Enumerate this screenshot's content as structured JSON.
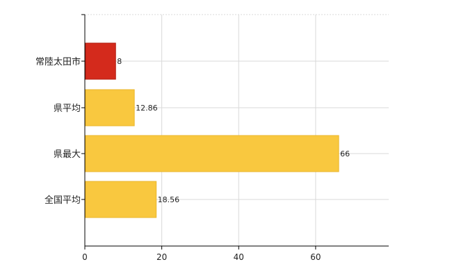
{
  "chart_data": {
    "type": "bar",
    "orientation": "horizontal",
    "title": "",
    "xlabel": "",
    "ylabel": "",
    "categories": [
      "常陸太田市",
      "県平均",
      "県最大",
      "全国平均"
    ],
    "values": [
      8,
      12.86,
      66,
      18.56
    ],
    "data_labels": [
      "8",
      "12.86",
      "66",
      "18.56"
    ],
    "xlim": [
      0,
      79
    ],
    "xticks": [
      0,
      20,
      40,
      60
    ],
    "grid": true,
    "legend": "none",
    "colors": {
      "highlight": "#d42a1c",
      "highlight_stroke": "#b01e12",
      "default": "#f9c83f",
      "default_stroke": "#eab62b"
    },
    "highlight_index": 0
  }
}
